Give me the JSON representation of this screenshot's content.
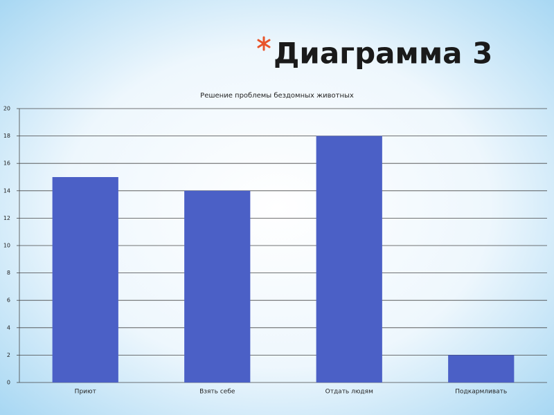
{
  "slide_title": "Диаграмма 3",
  "chart_data": {
    "type": "bar",
    "title": "Решение проблемы бездомных животных",
    "categories": [
      "Приют",
      "Взять себе",
      "Отдать людям",
      "Подкармливать"
    ],
    "values": [
      15,
      14,
      18,
      2
    ],
    "color": "#4b60c6",
    "ylim": [
      0,
      20
    ],
    "yticks": [
      0,
      2,
      4,
      6,
      8,
      10,
      12,
      14,
      16,
      18,
      20
    ],
    "grid": true
  }
}
